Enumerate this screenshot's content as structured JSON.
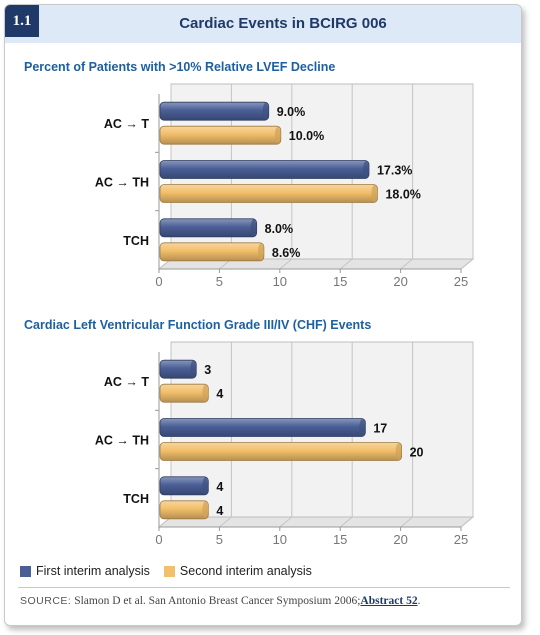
{
  "header": {
    "figure_number": "1.1",
    "title": "Cardiac Events in BCIRG 006"
  },
  "colors": {
    "first": "#4a5f96",
    "second": "#f2bf6a",
    "title_blue": "#1d5fa0",
    "header_bg": "#dde9f6"
  },
  "legend": {
    "first_label": "First interim analysis",
    "second_label": "Second interim analysis"
  },
  "source": {
    "label": "SOURCE:",
    "text": " Slamon D et al. San Antonio Breast Cancer Symposium 2006;",
    "link": "Abstract 52",
    "suffix": "."
  },
  "chart_data": [
    {
      "type": "bar",
      "orientation": "horizontal",
      "title": "Percent of Patients with >10% Relative LVEF Decline",
      "categories": [
        "AC → T",
        "AC → TH",
        "TCH"
      ],
      "series": [
        {
          "name": "First interim analysis",
          "values": [
            9.0,
            17.3,
            8.0
          ],
          "labels": [
            "9.0%",
            "17.3%",
            "8.0%"
          ]
        },
        {
          "name": "Second interim analysis",
          "values": [
            10.0,
            18.0,
            8.6
          ],
          "labels": [
            "10.0%",
            "18.0%",
            "8.6%"
          ]
        }
      ],
      "xlim": [
        0,
        25
      ],
      "xticks": [
        "0",
        "5",
        "10",
        "15",
        "20",
        "25"
      ],
      "grid": true
    },
    {
      "type": "bar",
      "orientation": "horizontal",
      "title": "Cardiac Left Ventricular Function Grade III/IV (CHF) Events",
      "categories": [
        "AC → T",
        "AC → TH",
        "TCH"
      ],
      "series": [
        {
          "name": "First interim analysis",
          "values": [
            3,
            17,
            4
          ],
          "labels": [
            "3",
            "17",
            "4"
          ]
        },
        {
          "name": "Second interim analysis",
          "values": [
            4,
            20,
            4
          ],
          "labels": [
            "4",
            "20",
            "4"
          ]
        }
      ],
      "xlim": [
        0,
        25
      ],
      "xticks": [
        "0",
        "5",
        "10",
        "15",
        "20",
        "25"
      ],
      "grid": true
    }
  ]
}
